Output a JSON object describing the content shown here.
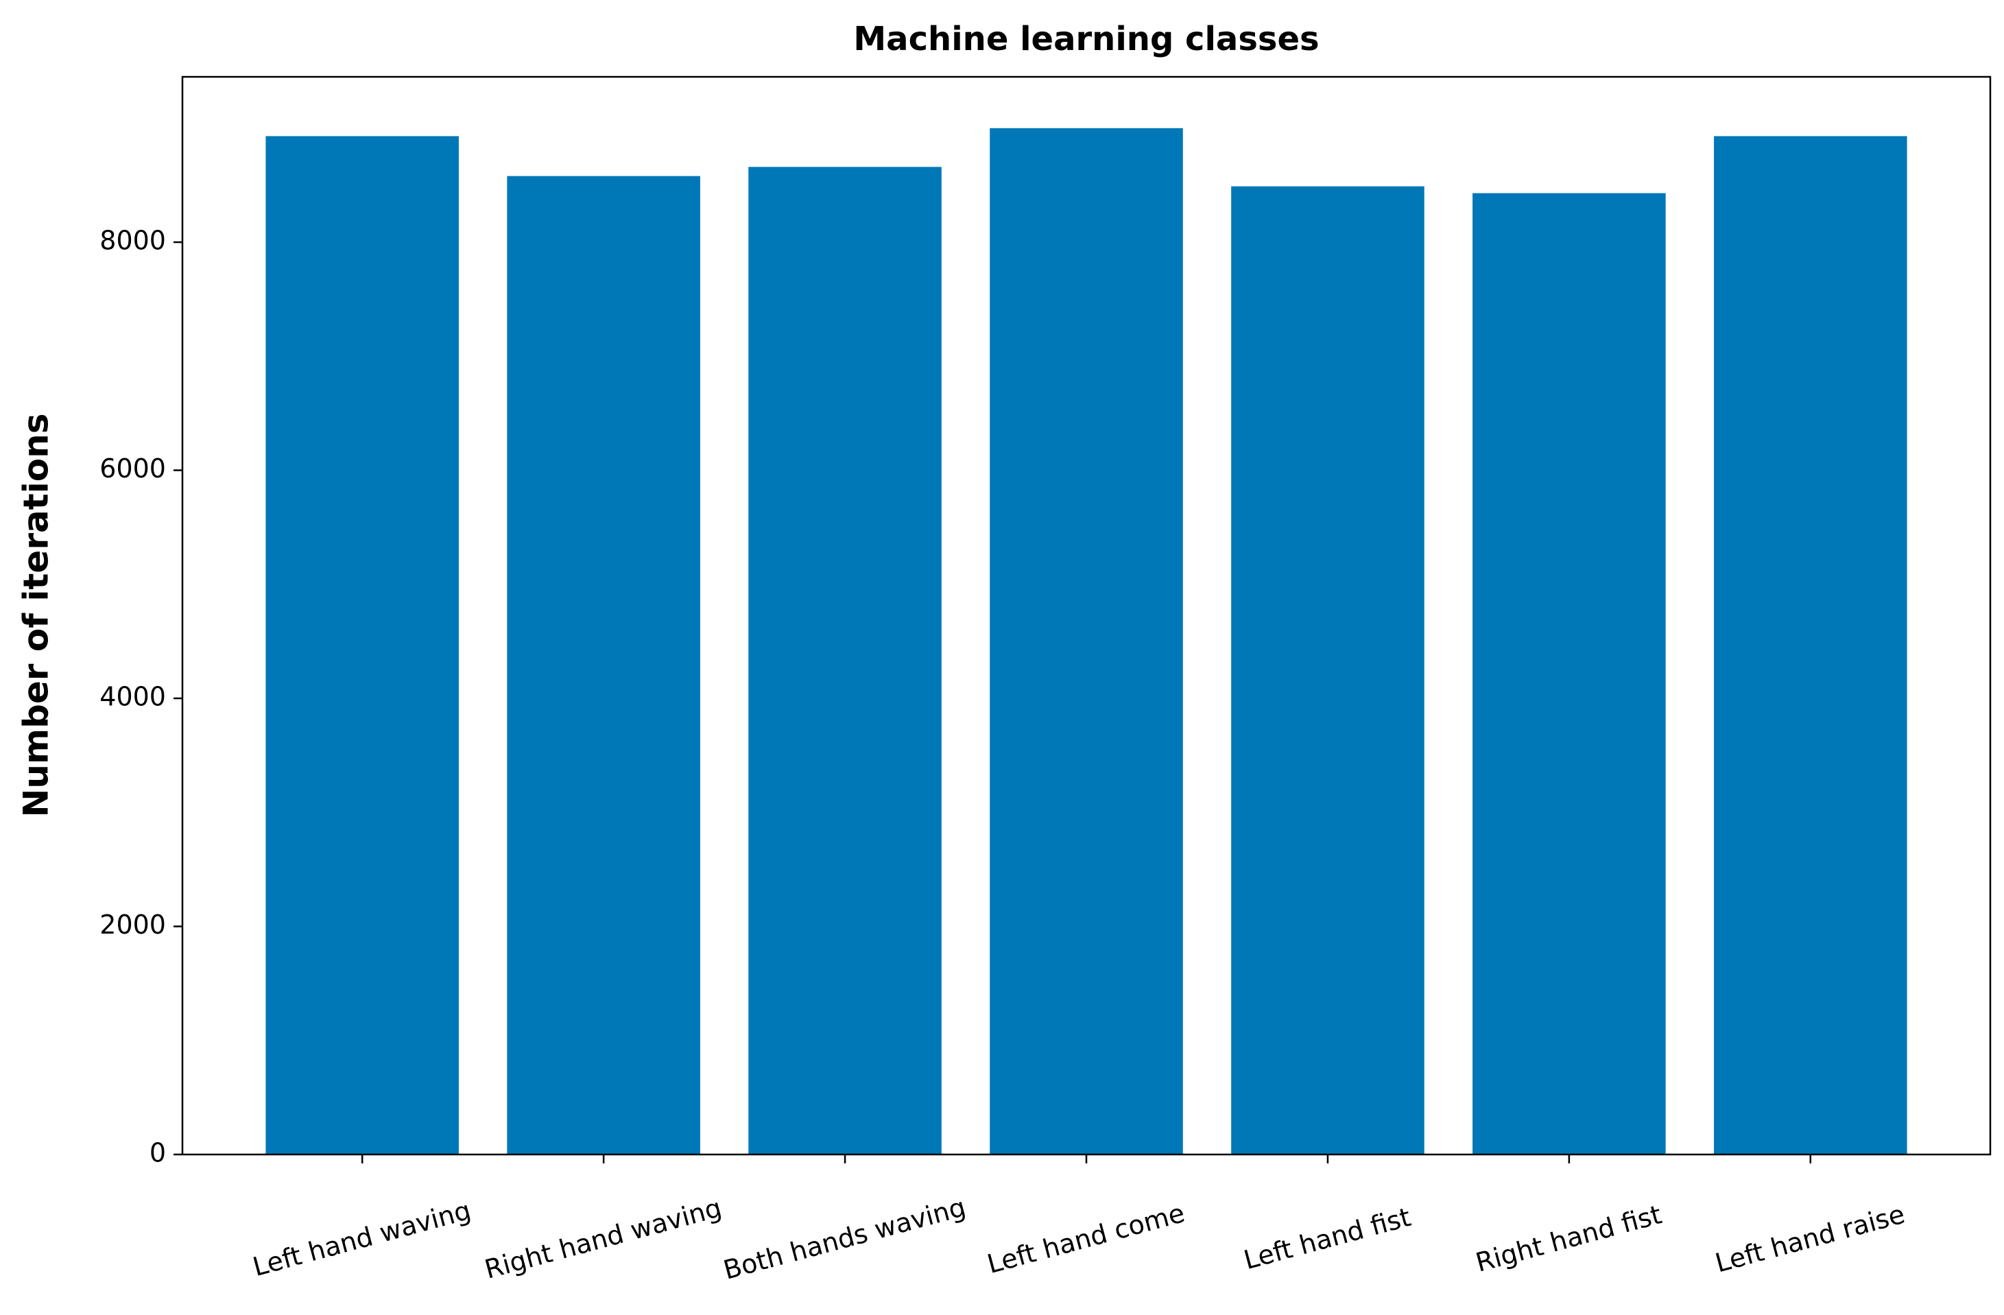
{
  "chart_data": {
    "type": "bar",
    "title": "Machine learning classes",
    "y_label": "Number of iterations",
    "categories": [
      "Left hand waving",
      "Right hand waving",
      "Both hands waving",
      "Left hand come",
      "Left hand fist",
      "Right hand fist",
      "Left hand raise"
    ],
    "values": [
      8930,
      8580,
      8660,
      9000,
      8490,
      8430,
      8930
    ],
    "color": "#0077b7",
    "ylim": [
      0,
      9450
    ],
    "yticks": [
      0,
      2000,
      4000,
      6000,
      8000
    ],
    "grid": false
  }
}
